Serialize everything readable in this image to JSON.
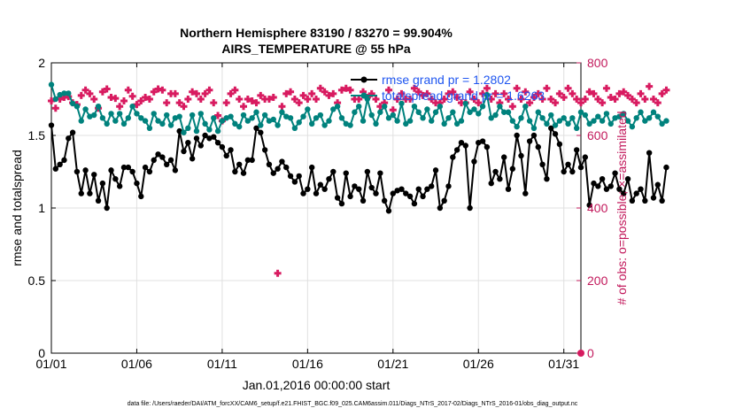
{
  "chart_data": {
    "type": "line",
    "title": "Northern Hemisphere 83190 / 83270 = 99.904%",
    "subtitle": "AIRS_TEMPERATURE @ 55 hPa",
    "xlabel": "Jan.01,2016 00:00:00 start",
    "ylabel_left": "rmse and totalspread",
    "ylabel_right": "# of obs: o=possible; ×=assimilated",
    "xlim": [
      1,
      32
    ],
    "ylim_left": [
      0,
      2
    ],
    "ylim_right": [
      0,
      800
    ],
    "x_ticks": [
      1,
      6,
      11,
      16,
      21,
      26,
      31
    ],
    "x_tick_labels": [
      "01/01",
      "01/06",
      "01/11",
      "01/16",
      "01/21",
      "01/26",
      "01/31"
    ],
    "y_ticks_left": [
      0,
      0.5,
      1,
      1.5,
      2
    ],
    "y_tick_labels_left": [
      "0",
      "0.5",
      "1",
      "1.5",
      "2"
    ],
    "y_ticks_right": [
      0,
      200,
      400,
      600,
      800
    ],
    "y_tick_labels_right": [
      "0",
      "200",
      "400",
      "600",
      "800"
    ],
    "grid": true,
    "legend_position": "top-right",
    "footer": "data file: /Users/raeder/DAI/ATM_forcXX/CAM6_setup/f.e21.FHIST_BGC.f09_025.CAM6assim.011/Diags_NTrS_2017-02/Diags_NTrS_2016-01/obs_diag_output.nc",
    "colors": {
      "rmse": "#000000",
      "spread": "#00827d",
      "obs": "#d81b60",
      "legend_text": "#1f56f0",
      "right_axis": "#c2185b",
      "grid": "#e0e0e0"
    },
    "series": [
      {
        "name": "rmse grand pr = 1.2802",
        "axis": "left",
        "x0": 1,
        "dx": 0.25,
        "values": [
          1.57,
          1.27,
          1.3,
          1.33,
          1.48,
          1.52,
          1.25,
          1.1,
          1.26,
          1.1,
          1.23,
          1.05,
          1.17,
          1.0,
          1.26,
          1.2,
          1.15,
          1.28,
          1.28,
          1.25,
          1.17,
          1.08,
          1.28,
          1.25,
          1.33,
          1.37,
          1.35,
          1.3,
          1.33,
          1.26,
          1.53,
          1.39,
          1.45,
          1.34,
          1.48,
          1.43,
          1.5,
          1.48,
          1.49,
          1.45,
          1.42,
          1.36,
          1.4,
          1.25,
          1.3,
          1.24,
          1.33,
          1.33,
          1.55,
          1.52,
          1.4,
          1.3,
          1.24,
          1.27,
          1.32,
          1.28,
          1.22,
          1.18,
          1.22,
          1.1,
          1.13,
          1.28,
          1.1,
          1.16,
          1.13,
          1.2,
          1.25,
          1.07,
          1.03,
          1.24,
          1.08,
          1.15,
          1.13,
          1.05,
          1.25,
          1.14,
          1.1,
          1.24,
          1.05,
          0.98,
          1.1,
          1.12,
          1.13,
          1.1,
          1.08,
          1.03,
          1.13,
          1.08,
          1.13,
          1.15,
          1.26,
          1.0,
          1.05,
          1.15,
          1.35,
          1.4,
          1.45,
          1.43,
          1.0,
          1.32,
          1.45,
          1.46,
          1.42,
          1.17,
          1.25,
          1.2,
          1.35,
          1.13,
          1.27,
          1.5,
          1.36,
          1.1,
          1.46,
          1.5,
          1.42,
          1.3,
          1.2,
          1.55,
          1.51,
          1.44,
          1.25,
          1.3,
          1.25,
          1.4,
          1.28,
          1.35,
          1.02,
          1.17,
          1.15,
          1.2,
          1.13,
          1.15,
          1.24,
          1.13,
          1.1,
          1.2,
          1.05,
          1.1,
          1.13,
          1.05,
          1.38,
          1.07,
          1.16,
          1.05,
          1.28
        ]
      },
      {
        "name": "totalspread grand pr = 1.6263",
        "axis": "left",
        "x0": 1,
        "dx": 0.25,
        "values": [
          1.85,
          1.75,
          1.78,
          1.79,
          1.79,
          1.72,
          1.7,
          1.6,
          1.68,
          1.63,
          1.64,
          1.7,
          1.62,
          1.58,
          1.65,
          1.6,
          1.65,
          1.58,
          1.62,
          1.7,
          1.65,
          1.62,
          1.6,
          1.55,
          1.65,
          1.6,
          1.58,
          1.64,
          1.57,
          1.62,
          1.63,
          1.52,
          1.55,
          1.64,
          1.53,
          1.65,
          1.58,
          1.54,
          1.62,
          1.53,
          1.6,
          1.62,
          1.63,
          1.58,
          1.56,
          1.64,
          1.6,
          1.62,
          1.66,
          1.57,
          1.64,
          1.6,
          1.61,
          1.57,
          1.66,
          1.63,
          1.62,
          1.55,
          1.59,
          1.63,
          1.68,
          1.58,
          1.62,
          1.64,
          1.57,
          1.6,
          1.68,
          1.7,
          1.62,
          1.58,
          1.57,
          1.66,
          1.7,
          1.6,
          1.75,
          1.64,
          1.58,
          1.66,
          1.7,
          1.62,
          1.64,
          1.6,
          1.72,
          1.58,
          1.6,
          1.7,
          1.66,
          1.62,
          1.68,
          1.6,
          1.66,
          1.7,
          1.58,
          1.62,
          1.66,
          1.58,
          1.6,
          1.72,
          1.66,
          1.68,
          1.65,
          1.7,
          1.78,
          1.62,
          1.64,
          1.7,
          1.66,
          1.66,
          1.6,
          1.56,
          1.62,
          1.7,
          1.6,
          1.55,
          1.66,
          1.62,
          1.58,
          1.64,
          1.57,
          1.6,
          1.62,
          1.58,
          1.62,
          1.55,
          1.66,
          1.64,
          1.58,
          1.6,
          1.63,
          1.6,
          1.65,
          1.58,
          1.62,
          1.63,
          1.65,
          1.6,
          1.56,
          1.62,
          1.66,
          1.6,
          1.62,
          1.66,
          1.63,
          1.58,
          1.6
        ]
      }
    ],
    "obs_assimilated": {
      "axis": "right",
      "x0": 1,
      "dx": 0.25,
      "values": [
        695,
        675,
        700,
        705,
        707,
        690,
        685,
        710,
        725,
        715,
        700,
        675,
        720,
        728,
        705,
        702,
        680,
        695,
        725,
        708,
        685,
        695,
        705,
        700,
        720,
        728,
        725,
        690,
        715,
        715,
        690,
        680,
        700,
        720,
        715,
        700,
        715,
        725,
        690,
        655,
        640,
        690,
        715,
        725,
        700,
        680,
        700,
        695,
        690,
        710,
        700,
        700,
        705,
        220,
        680,
        715,
        720,
        700,
        690,
        710,
        700,
        715,
        700,
        730,
        720,
        710,
        715,
        690,
        725,
        730,
        725,
        700,
        700,
        720,
        705,
        715,
        700,
        680,
        690,
        725,
        670,
        700,
        715,
        700,
        700,
        730,
        720,
        710,
        715,
        700,
        690,
        690,
        700,
        715,
        720,
        705,
        690,
        690,
        720,
        700,
        690,
        715,
        730,
        700,
        715,
        690,
        715,
        700,
        680,
        730,
        700,
        720,
        690,
        705,
        715,
        700,
        730,
        700,
        690,
        715,
        705,
        730,
        715,
        700,
        690,
        700,
        720,
        715,
        700,
        690,
        730,
        705,
        700,
        715,
        720,
        710,
        700,
        690,
        715,
        700,
        735,
        700,
        690,
        715,
        725
      ]
    },
    "legend": [
      {
        "label": "rmse grand pr = 1.2802",
        "color": "#000000"
      },
      {
        "label": "totalspread grand pr = 1.6263",
        "color": "#00827d"
      }
    ]
  }
}
